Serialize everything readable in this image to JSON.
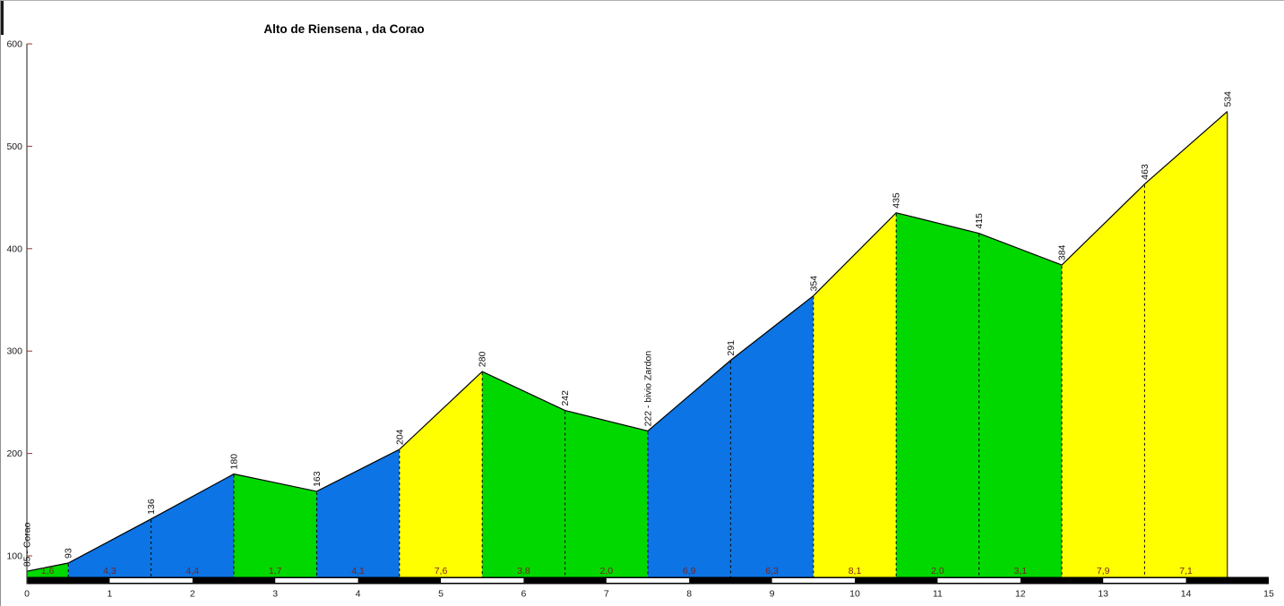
{
  "title": "Alto de Riensena , da Corao",
  "chart_data": {
    "type": "area",
    "title": "Alto de Riensena , da Corao",
    "x_unit": "km",
    "y_unit": "m",
    "xlim": [
      0,
      15
    ],
    "ylim": [
      80,
      600
    ],
    "x_ticks": [
      0,
      1,
      2,
      3,
      4,
      5,
      6,
      7,
      8,
      9,
      10,
      11,
      12,
      13,
      14,
      15
    ],
    "y_ticks": [
      100,
      200,
      300,
      400,
      500,
      600
    ],
    "grid": "off",
    "legend": "none",
    "start_name": "Corao",
    "waypoint_name": "bivio Zardon",
    "points": [
      {
        "km": 0.0,
        "elev": 85,
        "label": "85 - Corao"
      },
      {
        "km": 0.5,
        "elev": 93,
        "label": "93"
      },
      {
        "km": 1.5,
        "elev": 136,
        "label": "136"
      },
      {
        "km": 2.5,
        "elev": 180,
        "label": "180"
      },
      {
        "km": 3.5,
        "elev": 163,
        "label": "163"
      },
      {
        "km": 4.5,
        "elev": 204,
        "label": "204"
      },
      {
        "km": 5.5,
        "elev": 280,
        "label": "280"
      },
      {
        "km": 6.5,
        "elev": 242,
        "label": "242"
      },
      {
        "km": 7.5,
        "elev": 222,
        "label": "222 - bivio Zardon"
      },
      {
        "km": 8.5,
        "elev": 291,
        "label": "291"
      },
      {
        "km": 9.5,
        "elev": 354,
        "label": "354"
      },
      {
        "km": 10.5,
        "elev": 435,
        "label": "435"
      },
      {
        "km": 11.5,
        "elev": 415,
        "label": "415"
      },
      {
        "km": 12.5,
        "elev": 384,
        "label": "384"
      },
      {
        "km": 13.5,
        "elev": 463,
        "label": "463"
      },
      {
        "km": 14.5,
        "elev": 534,
        "label": "534"
      }
    ],
    "segments": [
      {
        "from_km": 0.0,
        "to_km": 0.5,
        "gradient_label": "1,6",
        "gradient_pct": 1.6,
        "color": "green"
      },
      {
        "from_km": 0.5,
        "to_km": 1.5,
        "gradient_label": "4,3",
        "gradient_pct": 4.3,
        "color": "blue"
      },
      {
        "from_km": 1.5,
        "to_km": 2.5,
        "gradient_label": "4,4",
        "gradient_pct": 4.4,
        "color": "blue"
      },
      {
        "from_km": 2.5,
        "to_km": 3.5,
        "gradient_label": "1,7",
        "gradient_pct": -1.7,
        "color": "green"
      },
      {
        "from_km": 3.5,
        "to_km": 4.5,
        "gradient_label": "4,1",
        "gradient_pct": 4.1,
        "color": "blue"
      },
      {
        "from_km": 4.5,
        "to_km": 5.5,
        "gradient_label": "7,6",
        "gradient_pct": 7.6,
        "color": "yellow"
      },
      {
        "from_km": 5.5,
        "to_km": 6.5,
        "gradient_label": "3,8",
        "gradient_pct": -3.8,
        "color": "green"
      },
      {
        "from_km": 6.5,
        "to_km": 7.5,
        "gradient_label": "2,0",
        "gradient_pct": -2.0,
        "color": "green"
      },
      {
        "from_km": 7.5,
        "to_km": 8.5,
        "gradient_label": "6,9",
        "gradient_pct": 6.9,
        "color": "blue"
      },
      {
        "from_km": 8.5,
        "to_km": 9.5,
        "gradient_label": "6,3",
        "gradient_pct": 6.3,
        "color": "blue"
      },
      {
        "from_km": 9.5,
        "to_km": 10.5,
        "gradient_label": "8,1",
        "gradient_pct": 8.1,
        "color": "yellow"
      },
      {
        "from_km": 10.5,
        "to_km": 11.5,
        "gradient_label": "2,0",
        "gradient_pct": -2.0,
        "color": "green"
      },
      {
        "from_km": 11.5,
        "to_km": 12.5,
        "gradient_label": "3,1",
        "gradient_pct": -3.1,
        "color": "green"
      },
      {
        "from_km": 12.5,
        "to_km": 13.5,
        "gradient_label": "7,9",
        "gradient_pct": 7.9,
        "color": "yellow"
      },
      {
        "from_km": 13.5,
        "to_km": 14.5,
        "gradient_label": "7,1",
        "gradient_pct": 7.1,
        "color": "yellow"
      }
    ],
    "km_ruler": {
      "start_km": 0,
      "end_km": 15,
      "first_color": "black",
      "alternate_color": "white"
    },
    "colors": {
      "green": "#00d800",
      "blue": "#0c74e4",
      "yellow": "#ffff00",
      "outline": "#000000",
      "dashed_line": "#000000",
      "gradient_text": "#7b1e1e",
      "elevation_text": "#111111",
      "axis_line": "#404040",
      "axis_tick": "#993333",
      "axis_text": "#1a1a1a",
      "ruler_black": "#000000",
      "ruler_white": "#ffffff"
    }
  }
}
